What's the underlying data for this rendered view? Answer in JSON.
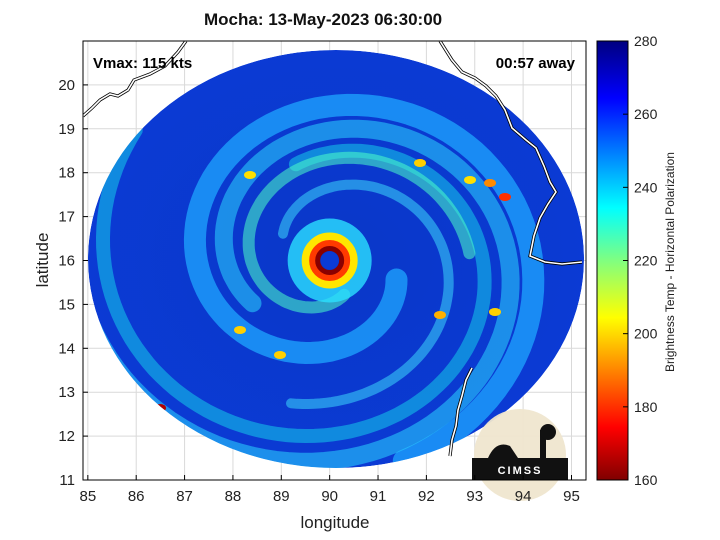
{
  "chart_data": {
    "type": "heatmap",
    "title": "Mocha: 13-May-2023 06:30:00",
    "xlabel": "longitude",
    "ylabel": "latitude",
    "xlim": [
      84.9,
      95.3
    ],
    "ylim": [
      11,
      21
    ],
    "xticks": [
      85,
      86,
      87,
      88,
      89,
      90,
      91,
      92,
      93,
      94,
      95
    ],
    "yticks": [
      11,
      12,
      13,
      14,
      15,
      16,
      17,
      18,
      19,
      20
    ],
    "grid": true,
    "annotations": {
      "vmax": "Vmax: 115 kts",
      "time_offset": "00:57 away"
    },
    "storm_center": {
      "lon": 90.0,
      "lat": 16.0
    },
    "colorbar": {
      "label": "Brightness Temp - Horizontal Polarization",
      "min": 160,
      "max": 280,
      "ticks": [
        160,
        180,
        200,
        220,
        240,
        260,
        280
      ],
      "colormap": "jet"
    }
  },
  "logo": {
    "text": "CIMSS"
  },
  "colors": {
    "background": "#ffffff",
    "coastline": "#ffffff",
    "axis": "#000000",
    "grid": "#d9d9d9"
  }
}
